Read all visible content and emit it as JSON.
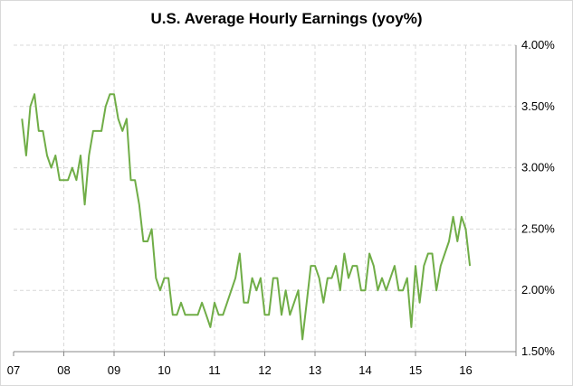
{
  "chart_data": {
    "type": "line",
    "title": "U.S. Average Hourly Earnings (yoy%)",
    "xlabel": "",
    "ylabel": "",
    "x_tick_labels": [
      "07",
      "08",
      "09",
      "10",
      "11",
      "12",
      "13",
      "14",
      "15",
      "16"
    ],
    "y_tick_labels": [
      "1.50%",
      "2.00%",
      "2.50%",
      "3.00%",
      "3.50%",
      "4.00%"
    ],
    "y_ticks": [
      1.5,
      2.0,
      2.5,
      3.0,
      3.5,
      4.0
    ],
    "ylim": [
      1.5,
      4.0
    ],
    "xlim": [
      "2007-01",
      "2016-12"
    ],
    "grid": true,
    "line_color": "#70ad47",
    "series": [
      {
        "x": [
          "2007-03",
          "2007-04",
          "2007-05",
          "2007-06",
          "2007-07",
          "2007-08",
          "2007-09",
          "2007-10",
          "2007-11",
          "2007-12",
          "2008-01",
          "2008-02",
          "2008-03",
          "2008-04",
          "2008-05",
          "2008-06",
          "2008-07",
          "2008-08",
          "2008-09",
          "2008-10",
          "2008-11",
          "2008-12",
          "2009-01",
          "2009-02",
          "2009-03",
          "2009-04",
          "2009-05",
          "2009-06",
          "2009-07",
          "2009-08",
          "2009-09",
          "2009-10",
          "2009-11",
          "2009-12",
          "2010-01",
          "2010-02",
          "2010-03",
          "2010-04",
          "2010-05",
          "2010-06",
          "2010-07",
          "2010-08",
          "2010-09",
          "2010-10",
          "2010-11",
          "2010-12",
          "2011-01",
          "2011-02",
          "2011-03",
          "2011-04",
          "2011-05",
          "2011-06",
          "2011-07",
          "2011-08",
          "2011-09",
          "2011-10",
          "2011-11",
          "2011-12",
          "2012-01",
          "2012-02",
          "2012-03",
          "2012-04",
          "2012-05",
          "2012-06",
          "2012-07",
          "2012-08",
          "2012-09",
          "2012-10",
          "2012-11",
          "2012-12",
          "2013-01",
          "2013-02",
          "2013-03",
          "2013-04",
          "2013-05",
          "2013-06",
          "2013-07",
          "2013-08",
          "2013-09",
          "2013-10",
          "2013-11",
          "2013-12",
          "2014-01",
          "2014-02",
          "2014-03",
          "2014-04",
          "2014-05",
          "2014-06",
          "2014-07",
          "2014-08",
          "2014-09",
          "2014-10",
          "2014-11",
          "2014-12",
          "2015-01",
          "2015-02",
          "2015-03",
          "2015-04",
          "2015-05",
          "2015-06",
          "2015-07",
          "2015-08",
          "2015-09",
          "2015-10",
          "2015-11",
          "2015-12",
          "2016-01",
          "2016-02"
        ],
        "values": [
          3.4,
          3.1,
          3.5,
          3.6,
          3.3,
          3.3,
          3.1,
          3.0,
          3.1,
          2.9,
          2.9,
          2.9,
          3.0,
          2.9,
          3.1,
          2.7,
          3.1,
          3.3,
          3.3,
          3.3,
          3.5,
          3.6,
          3.6,
          3.4,
          3.3,
          3.4,
          2.9,
          2.9,
          2.7,
          2.4,
          2.4,
          2.5,
          2.1,
          2.0,
          2.1,
          2.1,
          1.8,
          1.8,
          1.9,
          1.8,
          1.8,
          1.8,
          1.8,
          1.9,
          1.8,
          1.7,
          1.9,
          1.8,
          1.8,
          1.9,
          2.0,
          2.1,
          2.3,
          1.9,
          1.9,
          2.1,
          2.0,
          2.1,
          1.8,
          1.8,
          2.1,
          2.1,
          1.8,
          2.0,
          1.8,
          1.9,
          2.0,
          1.6,
          1.9,
          2.2,
          2.2,
          2.1,
          1.9,
          2.1,
          2.1,
          2.2,
          2.0,
          2.3,
          2.1,
          2.2,
          2.2,
          2.0,
          2.0,
          2.3,
          2.2,
          2.0,
          2.1,
          2.0,
          2.1,
          2.2,
          2.0,
          2.0,
          2.1,
          1.7,
          2.2,
          1.9,
          2.2,
          2.3,
          2.3,
          2.0,
          2.2,
          2.3,
          2.4,
          2.6,
          2.4,
          2.6,
          2.5,
          2.2
        ]
      }
    ]
  }
}
